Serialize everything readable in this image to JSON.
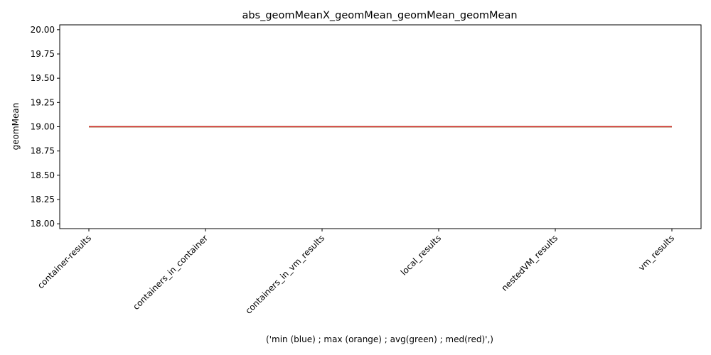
{
  "chart_data": {
    "type": "line",
    "title": "abs_geomMeanX_geomMean_geomMean_geomMean",
    "xlabel": "('min (blue) ; max (orange) ; avg(green) ; med(red)',)",
    "ylabel": "geomMean",
    "categories": [
      "container-results",
      "containers_in_container",
      "containers_in_vm_results",
      "local_results",
      "nestedVM_results",
      "vm_results"
    ],
    "ylim": [
      17.95,
      20.05
    ],
    "yticks": [
      18.0,
      18.25,
      18.5,
      18.75,
      19.0,
      19.25,
      19.5,
      19.75,
      20.0
    ],
    "ytick_labels": [
      "18.00",
      "18.25",
      "18.50",
      "18.75",
      "19.00",
      "19.25",
      "19.50",
      "19.75",
      "20.00"
    ],
    "grid": false,
    "series": [
      {
        "values": [
          19,
          19,
          19,
          19,
          19,
          19
        ],
        "color": "#1f77b4"
      },
      {
        "values": [
          19,
          19,
          19,
          19,
          19,
          19
        ],
        "color": "#ff7f0e"
      },
      {
        "values": [
          19,
          19,
          19,
          19,
          19,
          19
        ],
        "color": "#2ca02c"
      },
      {
        "values": [
          19,
          19,
          19,
          19,
          19,
          19
        ],
        "color": "#d62728"
      }
    ]
  }
}
